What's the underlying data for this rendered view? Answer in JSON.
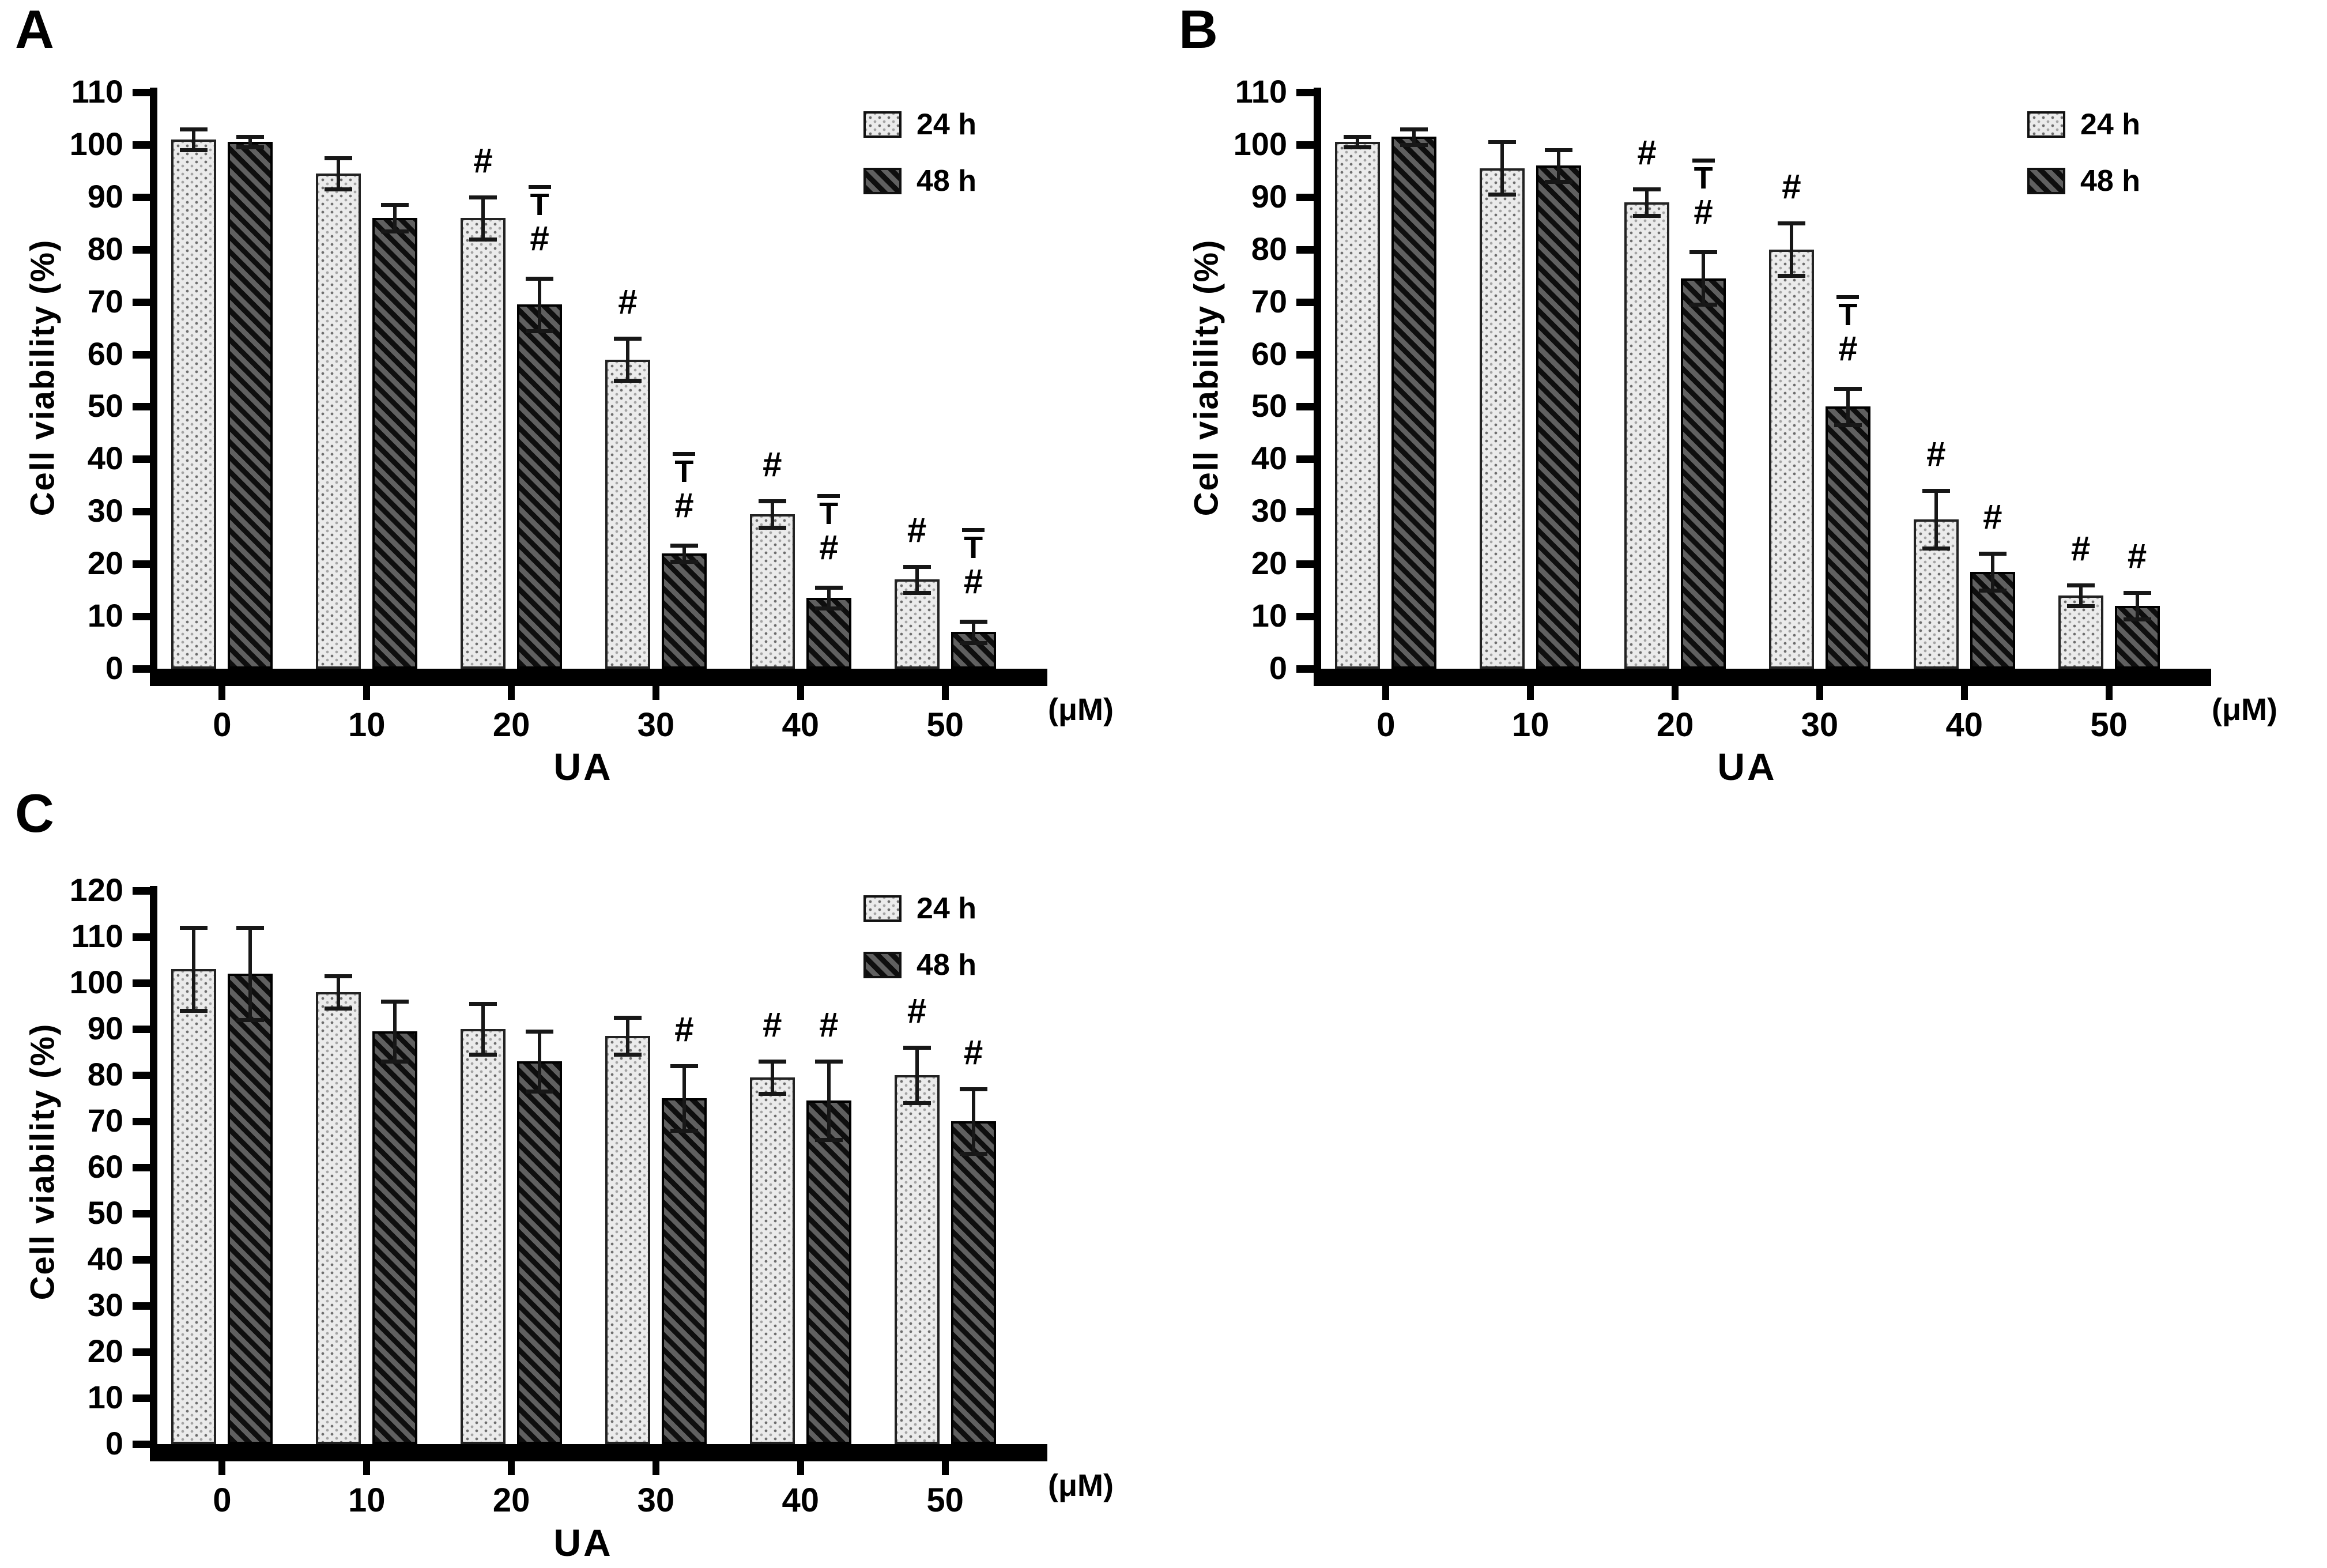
{
  "figure_background": "#ffffff",
  "colors": {
    "axis": "#000000",
    "text": "#000000",
    "bar_24h_fill": "#ebebeb",
    "bar_24h_dot": "#5f5f5f",
    "bar_48h_stripe_dark": "#0e0e0e",
    "bar_48h_stripe_light": "#606060",
    "error_bar": "#171717"
  },
  "chart_data": [
    {
      "type": "bar",
      "panel_label": "A",
      "title": "",
      "xlabel": "UA",
      "x_unit_label": "(μM)",
      "ylabel": "Cell viability (%)",
      "ylim": [
        0,
        110
      ],
      "ytick_step": 10,
      "yticks": [
        0,
        10,
        20,
        30,
        40,
        50,
        60,
        70,
        80,
        90,
        100,
        110
      ],
      "categories": [
        "0",
        "10",
        "20",
        "30",
        "40",
        "50"
      ],
      "grid": false,
      "legend_position": "top-right",
      "error_bar_style": "plus-minus",
      "series": [
        {
          "name": "24 h",
          "pattern": "dotted-light",
          "values": [
            101,
            94.5,
            86,
            59,
            29.5,
            17
          ],
          "errors": [
            2,
            3,
            4,
            4,
            2.5,
            2.5
          ],
          "annotations": [
            [],
            [],
            [
              "#"
            ],
            [
              "#"
            ],
            [
              "#"
            ],
            [
              "#"
            ]
          ]
        },
        {
          "name": "48 h",
          "pattern": "diagonal-dark",
          "values": [
            100.5,
            86,
            69.5,
            22,
            13.5,
            7
          ],
          "errors": [
            1,
            2.5,
            5,
            1.5,
            2,
            2
          ],
          "annotations": [
            [],
            [],
            [
              "T̄",
              "#"
            ],
            [
              "T̄",
              "#"
            ],
            [
              "T̄",
              "#"
            ],
            [
              "T̄",
              "#"
            ]
          ]
        }
      ]
    },
    {
      "type": "bar",
      "panel_label": "B",
      "title": "",
      "xlabel": "UA",
      "x_unit_label": "(μM)",
      "ylabel": "Cell viability (%)",
      "ylim": [
        0,
        110
      ],
      "ytick_step": 10,
      "yticks": [
        0,
        10,
        20,
        30,
        40,
        50,
        60,
        70,
        80,
        90,
        100,
        110
      ],
      "categories": [
        "0",
        "10",
        "20",
        "30",
        "40",
        "50"
      ],
      "grid": false,
      "legend_position": "top-right",
      "error_bar_style": "plus-minus",
      "series": [
        {
          "name": "24 h",
          "pattern": "dotted-light",
          "values": [
            100.5,
            95.5,
            89,
            80,
            28.5,
            14
          ],
          "errors": [
            1,
            5,
            2.5,
            5,
            5.5,
            2
          ],
          "annotations": [
            [],
            [],
            [
              "#"
            ],
            [
              "#"
            ],
            [
              "#"
            ],
            [
              "#"
            ]
          ]
        },
        {
          "name": "48 h",
          "pattern": "diagonal-dark",
          "values": [
            101.5,
            96,
            74.5,
            50,
            18.5,
            12
          ],
          "errors": [
            1.5,
            3,
            5,
            3.5,
            3.5,
            2.5
          ],
          "annotations": [
            [],
            [],
            [
              "T̄",
              "#"
            ],
            [
              "T̄",
              "#"
            ],
            [
              "#"
            ],
            [
              "#"
            ]
          ]
        }
      ]
    },
    {
      "type": "bar",
      "panel_label": "C",
      "title": "",
      "xlabel": "UA",
      "x_unit_label": "(μM)",
      "ylabel": "Cell viability (%)",
      "ylim": [
        0,
        120
      ],
      "ytick_step": 10,
      "yticks": [
        0,
        10,
        20,
        30,
        40,
        50,
        60,
        70,
        80,
        90,
        100,
        110,
        120
      ],
      "categories": [
        "0",
        "10",
        "20",
        "30",
        "40",
        "50"
      ],
      "grid": false,
      "legend_position": "top-right",
      "error_bar_style": "plus-minus",
      "series": [
        {
          "name": "24 h",
          "pattern": "dotted-light",
          "values": [
            103,
            98,
            90,
            88.5,
            79.5,
            80
          ],
          "errors": [
            9,
            3.5,
            5.5,
            4,
            3.5,
            6
          ],
          "annotations": [
            [],
            [],
            [],
            [],
            [
              "#"
            ],
            [
              "#"
            ]
          ]
        },
        {
          "name": "48 h",
          "pattern": "diagonal-dark",
          "values": [
            102,
            89.5,
            83,
            75,
            74.5,
            70
          ],
          "errors": [
            10,
            6.5,
            6.5,
            7,
            8.5,
            7
          ],
          "annotations": [
            [],
            [],
            [],
            [
              "#"
            ],
            [
              "#"
            ],
            [
              "#"
            ]
          ]
        }
      ]
    }
  ]
}
